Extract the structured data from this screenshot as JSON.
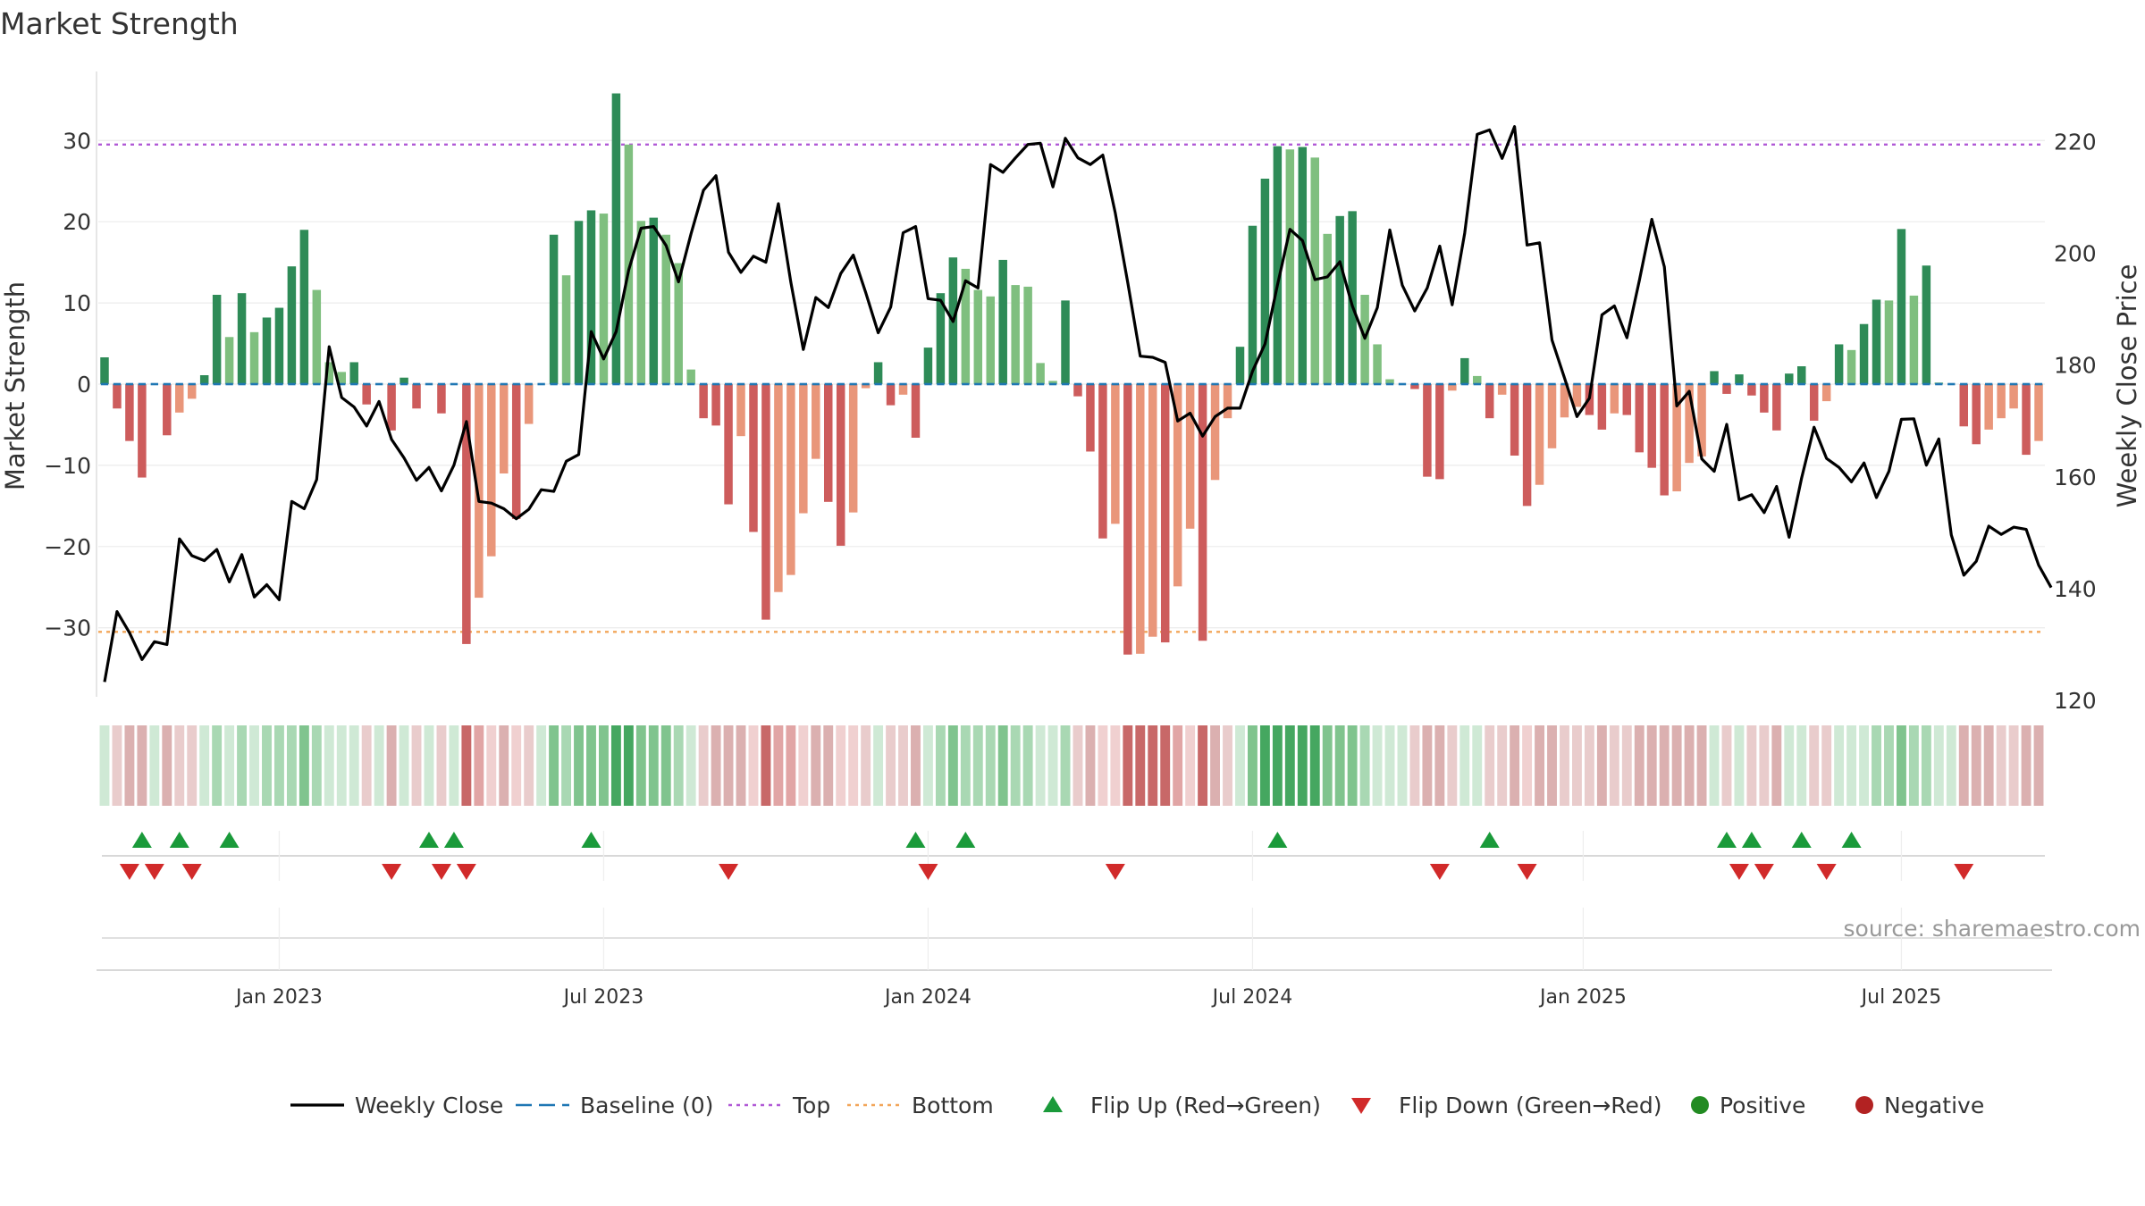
{
  "chart_data": {
    "type": "bar",
    "title": "Market Strength",
    "ylabel_left": "Market Strength",
    "ylabel_right": "Weekly Close Price",
    "ylim_left": [
      -38.5,
      38.5
    ],
    "ylim_right": [
      120,
      230
    ],
    "yticks_left": [
      {
        "value": 30,
        "label": "30"
      },
      {
        "value": 20,
        "label": "20"
      },
      {
        "value": 10,
        "label": "10"
      },
      {
        "value": 0,
        "label": "0"
      },
      {
        "value": -10,
        "label": "−10"
      },
      {
        "value": -20,
        "label": "−20"
      },
      {
        "value": -30,
        "label": "−30"
      }
    ],
    "yticks_right": [
      {
        "value": 220,
        "label": "220"
      },
      {
        "value": 200,
        "label": "200"
      },
      {
        "value": 180,
        "label": "180"
      },
      {
        "value": 160,
        "label": "160"
      },
      {
        "value": 140,
        "label": "140"
      },
      {
        "value": 120,
        "label": "120"
      }
    ],
    "x_range_weeks": [
      0,
      156
    ],
    "xticks": [
      {
        "week": 14.5,
        "label": "Jan 2023"
      },
      {
        "week": 40.5,
        "label": "Jul 2023"
      },
      {
        "week": 66.5,
        "label": "Jan 2024"
      },
      {
        "week": 92.5,
        "label": "Jul 2024"
      },
      {
        "week": 119,
        "label": "Jan 2025"
      },
      {
        "week": 144.5,
        "label": "Jul 2025"
      }
    ],
    "top_line": 29.5,
    "bottom_line": -30.5,
    "strength": [
      3.3,
      -3,
      -7,
      -11.5,
      0,
      -6.3,
      -3.5,
      -1.8,
      1.1,
      11,
      5.8,
      11.2,
      6.4,
      8.2,
      9.4,
      14.5,
      19,
      11.6,
      2.7,
      1.5,
      2.7,
      -2.5,
      0,
      -5.7,
      0.8,
      -3,
      0,
      -3.6,
      0,
      -32,
      -26.3,
      -21.2,
      -11,
      -16.6,
      -4.9,
      0,
      18.4,
      13.4,
      20.1,
      21.4,
      21,
      35.8,
      29.5,
      20.1,
      20.5,
      18.4,
      14.9,
      1.8,
      -4.2,
      -5.1,
      -14.8,
      -6.4,
      -18.2,
      -29,
      -25.6,
      -23.5,
      -15.9,
      -9.2,
      -14.5,
      -19.9,
      -15.8,
      -0.5,
      2.7,
      -2.6,
      -1.3,
      -6.6,
      4.5,
      11.2,
      15.6,
      14.2,
      11.6,
      10.8,
      15.3,
      12.2,
      12,
      2.6,
      0.4,
      10.3,
      -1.5,
      -8.3,
      -19,
      -17.2,
      -33.3,
      -33.2,
      -31.1,
      -31.8,
      -24.9,
      -17.8,
      -31.6,
      -11.8,
      -4.2,
      4.6,
      19.5,
      25.3,
      29.3,
      28.9,
      29.2,
      27.9,
      18.5,
      20.7,
      21.3,
      11,
      4.9,
      0.6,
      0,
      -0.6,
      -11.4,
      -11.7,
      -0.8,
      3.2,
      1,
      -4.2,
      -1.3,
      -8.8,
      -15,
      -12.4,
      -7.9,
      -4.1,
      -2.8,
      -3.8,
      -5.6,
      -3.6,
      -3.8,
      -8.4,
      -10.3,
      -13.7,
      -13.2,
      -9.7,
      -8.9,
      1.6,
      -1.2,
      1.2,
      -1.4,
      -3.5,
      -5.7,
      1.3,
      2.2,
      -4.5,
      -2.1,
      4.9,
      4.2,
      7.4,
      10.4,
      10.3,
      19.1,
      10.9,
      14.6,
      0.2,
      0,
      -5.2,
      -7.4,
      -5.6,
      -4.2,
      -3,
      -8.7,
      -7
    ],
    "close": [
      123.3,
      135.9,
      132.1,
      127.3,
      130.5,
      130,
      148.9,
      145.9,
      145,
      147,
      141.2,
      146.1,
      138.5,
      140.7,
      138,
      155.6,
      154.3,
      159.5,
      183.3,
      174.2,
      172.5,
      169.1,
      173.5,
      166.7,
      163.4,
      159.4,
      161.7,
      157.5,
      162.1,
      169.9,
      155.6,
      155.3,
      154.3,
      152.5,
      154.2,
      157.7,
      157.4,
      162.8,
      164,
      186,
      181.1,
      186,
      197,
      204.5,
      204.8,
      201.4,
      194.9,
      203.5,
      211.3,
      213.9,
      200.2,
      196.6,
      199.5,
      198.4,
      208.9,
      194.8,
      182.8,
      192.1,
      190.3,
      196.4,
      199.7,
      193,
      185.8,
      190.4,
      203.7,
      204.8,
      191.9,
      191.6,
      187.8,
      195.1,
      193.8,
      215.9,
      214.5,
      217.1,
      219.5,
      219.7,
      211.9,
      220.6,
      217.1,
      215.9,
      217.6,
      207.2,
      194.8,
      181.6,
      181.4,
      180.5,
      170,
      171.4,
      167.3,
      170.8,
      172.3,
      172.3,
      178.9,
      183.8,
      194.4,
      204.3,
      202.3,
      195.3,
      195.8,
      198.5,
      190.6,
      184.8,
      190.3,
      204.2,
      194.3,
      189.7,
      193.8,
      201.3,
      190.8,
      203.6,
      221.3,
      222.1,
      217,
      222.7,
      201.5,
      201.9,
      184.5,
      177.7,
      170.8,
      174.1,
      189,
      190.6,
      184.9,
      195.2,
      206.1,
      197.6,
      172.7,
      175.3,
      163.2,
      161,
      169.4,
      155.9,
      156.8,
      153.6,
      158.3,
      149.2,
      159.8,
      168.9,
      163.3,
      161.7,
      159.1,
      162.5,
      156.3,
      161,
      170.3,
      170.4,
      162.1,
      166.8,
      149.6,
      142.4,
      144.9,
      151.2,
      149.7,
      151,
      150.6,
      144.2,
      140.2
    ],
    "strip_fill_colors": [
      "#cfe9d5",
      "#e9cccc",
      "#dbb0b0",
      "#cfe9d5",
      "#a9d8b3",
      "#80c48e",
      "#45a760",
      "#f0d0d0",
      "#e1a5a5",
      "#d48080",
      "#c86868"
    ],
    "flip_up_weeks": [
      3,
      6,
      10,
      26,
      28,
      39,
      65,
      69,
      94,
      111,
      130,
      132,
      136,
      140
    ],
    "flip_down_weeks": [
      2,
      4,
      7,
      23,
      27,
      29,
      50,
      66,
      81,
      107,
      114,
      131,
      133,
      138,
      149
    ],
    "positive_color": "#2e8b57",
    "positive_light_color": "#7fbf7f",
    "negative_color": "#cd5c5c",
    "negative_light_color": "#e9967a",
    "close_color": "#000000",
    "baseline_color": "#1f77b4",
    "top_color": "#b15ad6",
    "bottom_color": "#f2a65a",
    "flip_up_color": "#1a9a3a",
    "flip_down_color": "#d12a2a",
    "legend": [
      {
        "key": "close",
        "label": "Weekly Close"
      },
      {
        "key": "baseline",
        "label": "Baseline (0)"
      },
      {
        "key": "top",
        "label": "Top"
      },
      {
        "key": "bottom",
        "label": "Bottom"
      },
      {
        "key": "flip_up",
        "label": "Flip Up (Red→Green)"
      },
      {
        "key": "flip_down",
        "label": "Flip Down (Green→Red)"
      },
      {
        "key": "positive",
        "label": "Positive"
      },
      {
        "key": "negative",
        "label": "Negative"
      }
    ],
    "legend_position": "bottom-center",
    "source": "source: sharemaestro.com"
  }
}
